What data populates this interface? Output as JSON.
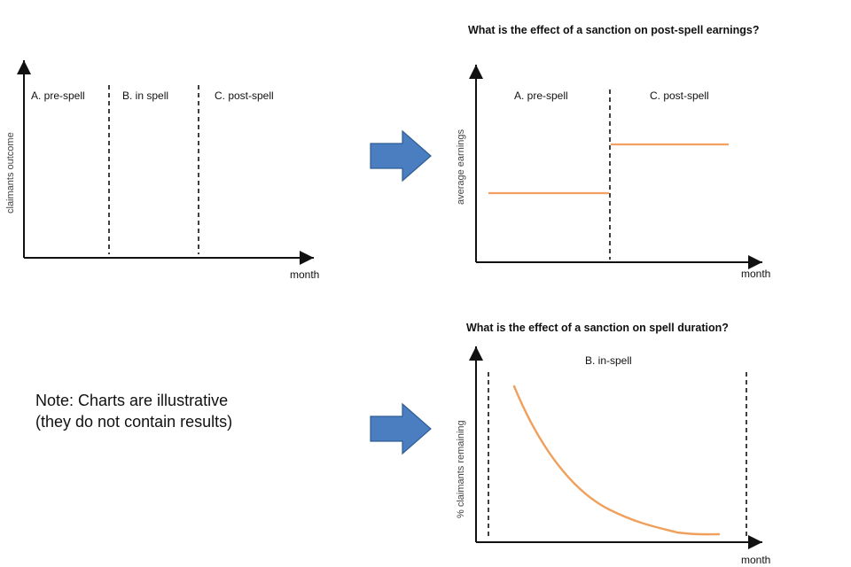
{
  "diagram1": {
    "segment_a": "A. pre-spell",
    "segment_b": "B. in spell",
    "segment_c": "C. post-spell",
    "y_axis_label": "claimants outcome",
    "x_axis_label": "month"
  },
  "diagram2": {
    "title": "What is the effect of a sanction on post-spell earnings?",
    "segment_a": "A. pre-spell",
    "segment_c": "C. post-spell",
    "y_axis_label": "average earnings",
    "x_axis_label": "month"
  },
  "diagram3": {
    "title": "What is the effect of a sanction on spell duration?",
    "segment_b": "B. in-spell",
    "y_axis_label": "% claimants remaining",
    "x_axis_label": "month"
  },
  "note": {
    "line1": "Note: Charts are illustrative",
    "line2": "(they do not contain results)"
  },
  "colors": {
    "arrow_fill": "#4a7ec0",
    "line_color": "#f4a060",
    "axis_color": "#111111"
  }
}
